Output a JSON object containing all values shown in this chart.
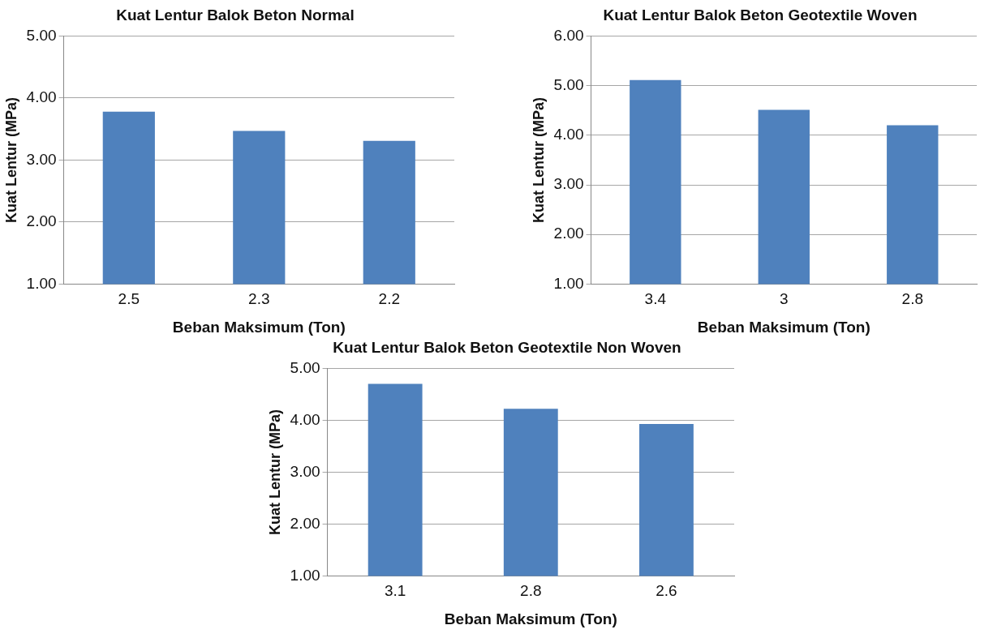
{
  "chart_data": [
    {
      "type": "bar",
      "title": "Kuat Lentur Balok Beton Normal",
      "xlabel": "Beban Maksimum (Ton)",
      "ylabel": "Kuat Lentur (MPa)",
      "categories": [
        "2.5",
        "2.3",
        "2.2"
      ],
      "values": [
        3.78,
        3.47,
        3.31
      ],
      "color": "#4f81bd",
      "ylim": [
        1,
        5
      ],
      "yticks": [
        {
          "value": 1,
          "label": "1.00"
        },
        {
          "value": 2,
          "label": "2.00"
        },
        {
          "value": 3,
          "label": "3.00"
        },
        {
          "value": 4,
          "label": "4.00"
        },
        {
          "value": 5,
          "label": "5.00"
        }
      ],
      "grid": "y",
      "legend": false
    },
    {
      "type": "bar",
      "title": "Kuat Lentur Balok Beton Geotextile Woven",
      "xlabel": "Beban Maksimum (Ton)",
      "ylabel": "Kuat Lentur (MPa)",
      "categories": [
        "3.4",
        "3",
        "2.8"
      ],
      "values": [
        5.11,
        4.51,
        4.2
      ],
      "color": "#4f81bd",
      "ylim": [
        1,
        6
      ],
      "yticks": [
        {
          "value": 1,
          "label": "1.00"
        },
        {
          "value": 2,
          "label": "2.00"
        },
        {
          "value": 3,
          "label": "3.00"
        },
        {
          "value": 4,
          "label": "4.00"
        },
        {
          "value": 5,
          "label": "5.00"
        },
        {
          "value": 6,
          "label": "6.00"
        }
      ],
      "grid": "y",
      "legend": false
    },
    {
      "type": "bar",
      "title": "Kuat Lentur Balok Beton Geotextile Non Woven",
      "xlabel": "Beban Maksimum (Ton)",
      "ylabel": "Kuat Lentur (MPa)",
      "categories": [
        "3.1",
        "2.8",
        "2.6"
      ],
      "values": [
        4.7,
        4.22,
        3.93
      ],
      "color": "#4f81bd",
      "ylim": [
        1,
        5
      ],
      "yticks": [
        {
          "value": 1,
          "label": "1.00"
        },
        {
          "value": 2,
          "label": "2.00"
        },
        {
          "value": 3,
          "label": "3.00"
        },
        {
          "value": 4,
          "label": "4.00"
        },
        {
          "value": 5,
          "label": "5.00"
        }
      ],
      "grid": "y",
      "legend": false
    }
  ]
}
